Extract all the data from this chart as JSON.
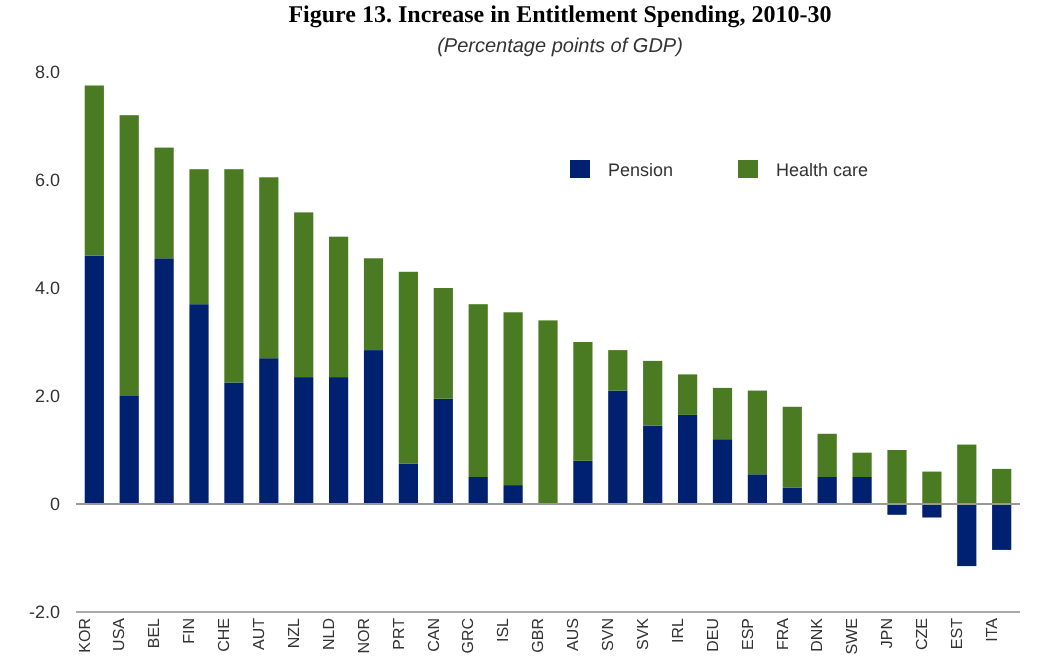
{
  "chart_data": {
    "type": "bar",
    "title": "Figure 13. Increase in Entitlement Spending, 2010-30",
    "subtitle": "(Percentage points of GDP)",
    "categories": [
      "KOR",
      "USA",
      "BEL",
      "FIN",
      "CHE",
      "AUT",
      "NZL",
      "NLD",
      "NOR",
      "PRT",
      "CAN",
      "GRC",
      "ISL",
      "GBR",
      "AUS",
      "SVN",
      "SVK",
      "IRL",
      "DEU",
      "ESP",
      "FRA",
      "DNK",
      "SWE",
      "JPN",
      "CZE",
      "EST",
      "ITA"
    ],
    "series": [
      {
        "name": "Pension",
        "color": "#002070",
        "values": [
          4.6,
          2.0,
          4.55,
          3.7,
          2.25,
          2.7,
          2.35,
          2.35,
          2.85,
          0.75,
          1.95,
          0.5,
          0.35,
          0,
          0.8,
          2.1,
          1.45,
          1.65,
          1.2,
          0.55,
          0.3,
          0.5,
          0.5,
          -0.2,
          -0.25,
          -1.15,
          -0.85
        ]
      },
      {
        "name": "Health care",
        "color": "#4a7a22",
        "values": [
          3.15,
          5.2,
          2.05,
          2.5,
          3.95,
          3.35,
          3.05,
          2.6,
          1.7,
          3.55,
          2.05,
          3.2,
          3.2,
          3.4,
          2.2,
          0.75,
          1.2,
          0.75,
          0.95,
          1.55,
          1.5,
          0.8,
          0.45,
          1.0,
          0.6,
          1.1,
          0.65
        ]
      }
    ],
    "stacked": true,
    "ylim": [
      -2,
      8
    ],
    "yticks": [
      {
        "value": -2,
        "label": "-2.0"
      },
      0,
      {
        "value": 2,
        "label": "2.0"
      },
      {
        "value": 4,
        "label": "4.0"
      },
      {
        "value": 6,
        "label": "6.0"
      },
      {
        "value": 8,
        "label": "8.0"
      }
    ],
    "legend": "top right"
  }
}
